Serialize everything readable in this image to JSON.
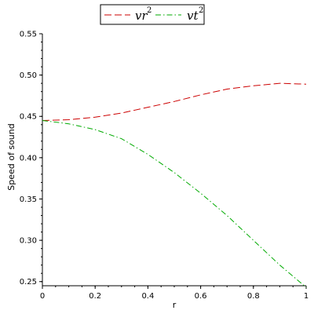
{
  "chart_data": {
    "type": "line",
    "title": "",
    "xlabel": "r",
    "ylabel": "Speed of sound",
    "xlim": [
      0,
      1
    ],
    "ylim": [
      0.245,
      0.55
    ],
    "grid": false,
    "legend_position": "top-center",
    "x_ticks": [
      {
        "value": 0,
        "label": "0"
      },
      {
        "value": 0.2,
        "label": "0.2"
      },
      {
        "value": 0.4,
        "label": "0.4"
      },
      {
        "value": 0.6,
        "label": "0.6"
      },
      {
        "value": 0.8,
        "label": "0.8"
      },
      {
        "value": 1,
        "label": "1"
      }
    ],
    "y_ticks": [
      {
        "value": 0.25,
        "label": "0.25"
      },
      {
        "value": 0.3,
        "label": "0.30"
      },
      {
        "value": 0.35,
        "label": "0.35"
      },
      {
        "value": 0.4,
        "label": "0.40"
      },
      {
        "value": 0.45,
        "label": "0.45"
      },
      {
        "value": 0.5,
        "label": "0.50"
      },
      {
        "value": 0.55,
        "label": "0.55"
      }
    ],
    "series": [
      {
        "name": "vr²",
        "name_base": "vr",
        "name_sup": "2",
        "color": "#cc0000",
        "style": "dash",
        "x": [
          0,
          0.1,
          0.2,
          0.3,
          0.4,
          0.5,
          0.6,
          0.7,
          0.8,
          0.9,
          1.0
        ],
        "y": [
          0.445,
          0.446,
          0.449,
          0.454,
          0.461,
          0.468,
          0.476,
          0.483,
          0.487,
          0.49,
          0.489
        ]
      },
      {
        "name": "vt²",
        "name_base": "vt",
        "name_sup": "2",
        "color": "#00aa00",
        "style": "dashdot",
        "x": [
          0,
          0.1,
          0.2,
          0.3,
          0.4,
          0.5,
          0.6,
          0.7,
          0.8,
          0.9,
          1.0
        ],
        "y": [
          0.445,
          0.441,
          0.434,
          0.423,
          0.404,
          0.382,
          0.357,
          0.33,
          0.3,
          0.27,
          0.243
        ]
      }
    ]
  }
}
